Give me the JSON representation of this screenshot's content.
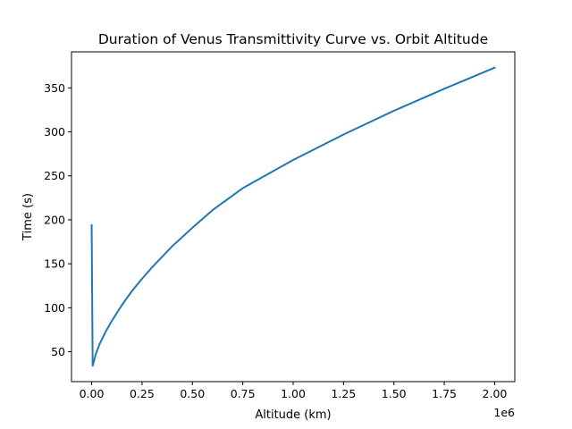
{
  "chart_data": {
    "type": "line",
    "title": "Duration of Venus Transmittivity Curve vs. Orbit Altitude",
    "xlabel": "Altitude (km)",
    "ylabel": "Time (s)",
    "x_offset_label": "1e6",
    "xlim": [
      -100000,
      2100000
    ],
    "ylim": [
      16,
      391
    ],
    "x_ticks": [
      0,
      250000,
      500000,
      750000,
      1000000,
      1250000,
      1500000,
      1750000,
      2000000
    ],
    "x_tick_labels": [
      "0.00",
      "0.25",
      "0.50",
      "0.75",
      "1.00",
      "1.25",
      "1.50",
      "1.75",
      "2.00"
    ],
    "y_ticks": [
      50,
      100,
      150,
      200,
      250,
      300,
      350
    ],
    "y_tick_labels": [
      "50",
      "100",
      "150",
      "200",
      "250",
      "300",
      "350"
    ],
    "grid": false,
    "series": [
      {
        "color": "#1f77b4",
        "x": [
          0,
          5000,
          10000,
          20000,
          40000,
          70000,
          100000,
          150000,
          200000,
          250000,
          300000,
          400000,
          500000,
          600000,
          750000,
          1000000,
          1250000,
          1500000,
          1750000,
          2000000
        ],
        "y": [
          194,
          34,
          38,
          47,
          59,
          73,
          85,
          103,
          119,
          133,
          146,
          170,
          191,
          211,
          236,
          268,
          297,
          324,
          349,
          373
        ]
      }
    ]
  }
}
